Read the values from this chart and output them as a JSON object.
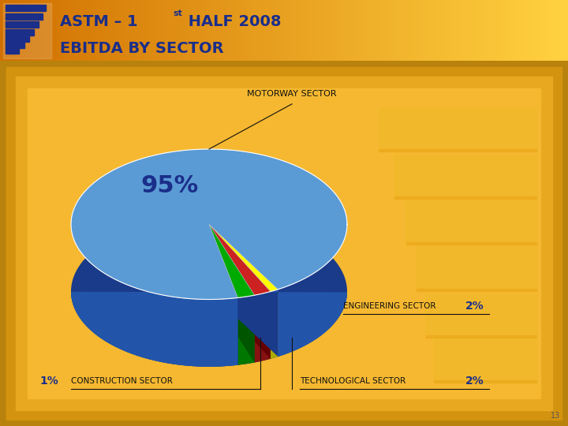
{
  "title_line1": "ASTM – 1",
  "title_sup": "st",
  "title_line1b": " HALF 2008",
  "title_line2": "EBITDA BY SECTOR",
  "header_text_color": "#1a2e8a",
  "slide_bg": "#b0b0b0",
  "page_num": "13",
  "sectors": [
    "MOTORWAY SECTOR",
    "ENGINEERING SECTOR",
    "TECHNOLOGICAL SECTOR",
    "CONSTRUCTION SECTOR"
  ],
  "values": [
    95,
    2,
    2,
    1
  ],
  "colors_top": [
    "#5b9bd5",
    "#00aa00",
    "#cc2222",
    "#ffff00"
  ],
  "colors_side": [
    "#2255aa",
    "#007700",
    "#881111",
    "#aaaa00"
  ],
  "colors_side2": [
    "#1a3a8a",
    "#005500",
    "#660000",
    "#888800"
  ],
  "label_color_pct": "#1a2e8a",
  "label_color_sector": "#111111",
  "bg_outer": "#c8850a",
  "bg_mid": "#e8a020",
  "bg_inner": "#f5b835",
  "bg_lightest": "#f8c84a",
  "stair_color1": "#e8a820",
  "stair_color2": "#d49010"
}
